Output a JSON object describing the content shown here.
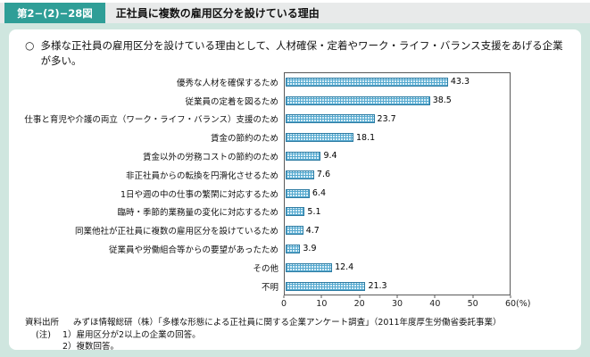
{
  "header": {
    "figure_number": "第2−(2)−28図",
    "title": "正社員に複数の雇用区分を設けている理由"
  },
  "lead_bullet": "○",
  "lead": "多様な正社員の雇用区分を設けている理由として、人材確保・定着やワーク・ライフ・バランス支援をあげる企業が多い。",
  "chart_data": {
    "type": "bar",
    "orientation": "horizontal",
    "categories": [
      "優秀な人材を確保するため",
      "従業員の定着を図るため",
      "仕事と育児や介護の両立（ワーク・ライフ・バランス）支援のため",
      "賃金の節約のため",
      "賃金以外の労務コストの節約のため",
      "非正社員からの転換を円滑化させるため",
      "1日や週の中の仕事の繁閑に対応するため",
      "臨時・季節的業務量の変化に対応するため",
      "同業他社が正社員に複数の雇用区分を設けているため",
      "従業員や労働組合等からの要望があったため",
      "その他",
      "不明"
    ],
    "values": [
      43.3,
      38.5,
      23.7,
      18.1,
      9.4,
      7.6,
      6.4,
      5.1,
      4.7,
      3.9,
      12.4,
      21.3
    ],
    "xlim": [
      0,
      60
    ],
    "x_ticks": [
      0,
      10,
      20,
      30,
      40,
      50,
      60
    ],
    "x_unit": "(%)",
    "grid": false,
    "legend": "none",
    "bar_fill_color": "#d8eef7",
    "bar_pattern_color": "#56a9cf",
    "bar_border_color": "#2e7ca3"
  },
  "colors": {
    "header_badge": "#2f9e97",
    "header_strip": "#e8eaea",
    "background_mint": "#cfe6df",
    "panel": "#ffffff"
  },
  "footnotes": {
    "source_label": "資料出所",
    "source_text": "みずほ情報総研（株）「多様な形態による正社員に関する企業アンケート調査」（2011年度厚生労働省委託事業）",
    "note_label": "(注)",
    "notes": [
      "1）雇用区分が2以上の企業の回答。",
      "2）複数回答。"
    ]
  }
}
